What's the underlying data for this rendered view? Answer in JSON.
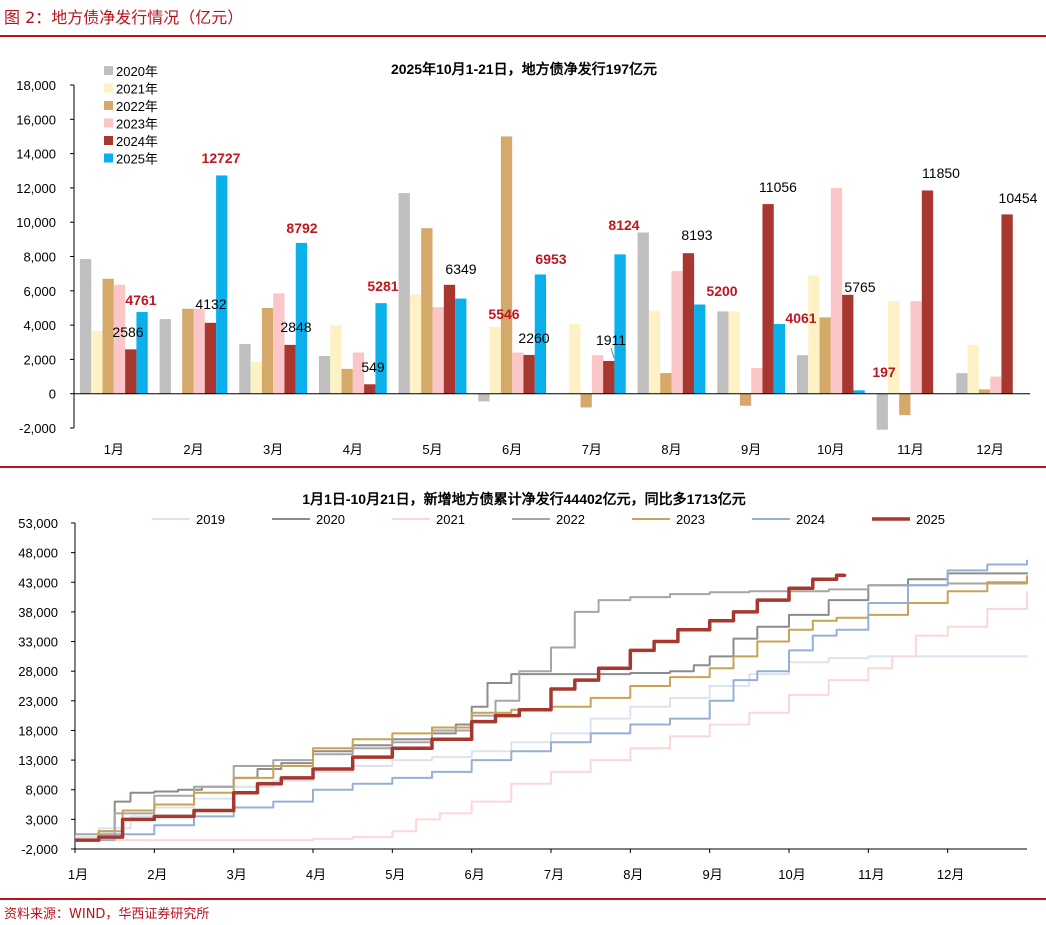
{
  "page": {
    "figure_title": "图 2：地方债净发行情况（亿元）",
    "source": "资料来源：WIND，华西证券研究所"
  },
  "chart_data": [
    {
      "type": "bar",
      "title": "2025年10月1-21日，地方债净发行197亿元",
      "categories": [
        "1月",
        "2月",
        "3月",
        "4月",
        "5月",
        "6月",
        "7月",
        "8月",
        "9月",
        "10月",
        "11月",
        "12月"
      ],
      "ylim": [
        -2000,
        18000
      ],
      "yticks": [
        -2000,
        0,
        2000,
        4000,
        6000,
        8000,
        10000,
        12000,
        14000,
        16000,
        18000
      ],
      "ytick_labels": [
        "-2,000",
        "0",
        "2,000",
        "4,000",
        "6,000",
        "8,000",
        "10,000",
        "12,000",
        "14,000",
        "16,000",
        "18,000"
      ],
      "legend_position": "top-left",
      "series": [
        {
          "name": "2020年",
          "color": "#bfbfbf",
          "values": [
            7850,
            4350,
            2900,
            2200,
            11700,
            -450,
            null,
            9400,
            4800,
            2250,
            -2100,
            1200
          ]
        },
        {
          "name": "2021年",
          "color": "#fdf2c6",
          "values": [
            3650,
            null,
            1850,
            4000,
            5800,
            3900,
            4050,
            4850,
            4800,
            6900,
            5400,
            2850
          ]
        },
        {
          "name": "2022年",
          "color": "#d4a96a",
          "values": [
            6700,
            4950,
            5000,
            1450,
            9650,
            15000,
            -800,
            1200,
            -700,
            4450,
            -1250,
            250
          ]
        },
        {
          "name": "2023年",
          "color": "#fbc6c8",
          "values": [
            6350,
            4950,
            5850,
            2400,
            5050,
            2400,
            2250,
            7150,
            1500,
            12000,
            5400,
            1000
          ]
        },
        {
          "name": "2024年",
          "color": "#a8382f",
          "values": [
            2586,
            4132,
            2848,
            549,
            6349,
            2260,
            1911,
            8193,
            11056,
            5765,
            11850,
            10454
          ]
        },
        {
          "name": "2025年",
          "color": "#0ab0ec",
          "values": [
            4761,
            12727,
            8792,
            5281,
            5546,
            6953,
            8124,
            5200,
            4061,
            197,
            null,
            null
          ]
        }
      ],
      "labels_2024": [
        "2586",
        "4132",
        "2848",
        "549",
        "6349",
        "2260",
        "1911",
        "8193",
        "11056",
        "5765",
        "11850",
        "10454"
      ],
      "labels_2025": [
        "4761",
        "12727",
        "8792",
        "5281",
        "5546",
        "6953",
        "8124",
        "5200",
        "4061",
        "197"
      ]
    },
    {
      "type": "line",
      "title": "1月1日-10月21日，新增地方债累计净发行44402亿元，同比多1713亿元",
      "xlabels": [
        "1月",
        "2月",
        "3月",
        "4月",
        "5月",
        "6月",
        "7月",
        "8月",
        "9月",
        "10月",
        "11月",
        "12月"
      ],
      "ylim": [
        -2000,
        53000
      ],
      "yticks": [
        -2000,
        3000,
        8000,
        13000,
        18000,
        23000,
        28000,
        33000,
        38000,
        43000,
        48000,
        53000
      ],
      "ytick_labels": [
        "-2,000",
        "3,000",
        "8,000",
        "13,000",
        "18,000",
        "23,000",
        "28,000",
        "33,000",
        "38,000",
        "43,000",
        "48,000",
        "53,000"
      ],
      "legend_position": "top",
      "x_unit": "month index (0 = Jan 1, 12 = Dec 31)",
      "series": [
        {
          "name": "2019",
          "color": "#dbe3f0",
          "width": 2,
          "points": [
            [
              0,
              0
            ],
            [
              0.3,
              1500
            ],
            [
              0.7,
              3500
            ],
            [
              1,
              5000
            ],
            [
              1.5,
              6500
            ],
            [
              2,
              8500
            ],
            [
              2.5,
              9500
            ],
            [
              3,
              11000
            ],
            [
              3.5,
              12000
            ],
            [
              4,
              13000
            ],
            [
              4.5,
              13500
            ],
            [
              5,
              14500
            ],
            [
              5.5,
              16000
            ],
            [
              6,
              17500
            ],
            [
              6.5,
              20000
            ],
            [
              7,
              22000
            ],
            [
              7.5,
              23500
            ],
            [
              8,
              25500
            ],
            [
              8.5,
              27500
            ],
            [
              9,
              29500
            ],
            [
              9.5,
              30200
            ],
            [
              10,
              30500
            ],
            [
              11,
              30500
            ],
            [
              12,
              30700
            ]
          ]
        },
        {
          "name": "2020",
          "color": "#8c8c8c",
          "width": 2,
          "points": [
            [
              0,
              -500
            ],
            [
              0.3,
              1000
            ],
            [
              0.5,
              6000
            ],
            [
              0.7,
              7500
            ],
            [
              1,
              7700
            ],
            [
              1.3,
              8000
            ],
            [
              1.6,
              8500
            ],
            [
              2,
              10000
            ],
            [
              2.3,
              11500
            ],
            [
              2.6,
              12500
            ],
            [
              3,
              14500
            ],
            [
              3.5,
              15500
            ],
            [
              4,
              16500
            ],
            [
              4.5,
              17500
            ],
            [
              4.8,
              19000
            ],
            [
              5,
              22000
            ],
            [
              5.2,
              26000
            ],
            [
              5.5,
              27500
            ],
            [
              6,
              27500
            ],
            [
              6.5,
              27500
            ],
            [
              7,
              27700
            ],
            [
              7.5,
              28000
            ],
            [
              7.8,
              29000
            ],
            [
              8,
              30500
            ],
            [
              8.3,
              33500
            ],
            [
              8.6,
              35500
            ],
            [
              9,
              37500
            ],
            [
              9.5,
              40000
            ],
            [
              10,
              42500
            ],
            [
              10.5,
              43500
            ],
            [
              11,
              44500
            ],
            [
              12,
              44700
            ]
          ]
        },
        {
          "name": "2021",
          "color": "#fbd8d6",
          "width": 2,
          "points": [
            [
              0,
              -500
            ],
            [
              2,
              -500
            ],
            [
              3,
              -300
            ],
            [
              3.5,
              0
            ],
            [
              4,
              1000
            ],
            [
              4.3,
              3000
            ],
            [
              4.6,
              4000
            ],
            [
              5,
              6000
            ],
            [
              5.5,
              9000
            ],
            [
              6,
              11000
            ],
            [
              6.5,
              13000
            ],
            [
              7,
              15000
            ],
            [
              7.5,
              17000
            ],
            [
              8,
              19000
            ],
            [
              8.5,
              21000
            ],
            [
              9,
              24000
            ],
            [
              9.5,
              26500
            ],
            [
              10,
              28500
            ],
            [
              10.3,
              30500
            ],
            [
              10.6,
              34000
            ],
            [
              11,
              35500
            ],
            [
              11.5,
              38500
            ],
            [
              12,
              41500
            ]
          ]
        },
        {
          "name": "2022",
          "color": "#a6a6a6",
          "width": 2,
          "points": [
            [
              0,
              500
            ],
            [
              0.5,
              4000
            ],
            [
              1,
              7000
            ],
            [
              1.5,
              8500
            ],
            [
              2,
              12000
            ],
            [
              2.5,
              13000
            ],
            [
              3,
              14000
            ],
            [
              3.5,
              15000
            ],
            [
              4,
              16000
            ],
            [
              4.5,
              18000
            ],
            [
              5,
              20500
            ],
            [
              5.3,
              23000
            ],
            [
              5.6,
              28000
            ],
            [
              6,
              32000
            ],
            [
              6.3,
              38000
            ],
            [
              6.6,
              40000
            ],
            [
              7,
              40500
            ],
            [
              7.5,
              41000
            ],
            [
              8,
              41300
            ],
            [
              8.5,
              41500
            ],
            [
              9,
              41500
            ],
            [
              9.5,
              41800
            ],
            [
              10,
              42500
            ],
            [
              11,
              42800
            ],
            [
              12,
              43000
            ]
          ]
        },
        {
          "name": "2023",
          "color": "#c9a253",
          "width": 2,
          "points": [
            [
              0,
              -500
            ],
            [
              0.3,
              1000
            ],
            [
              0.6,
              4500
            ],
            [
              1,
              5500
            ],
            [
              1.5,
              7500
            ],
            [
              2,
              10000
            ],
            [
              2.5,
              12000
            ],
            [
              3,
              15000
            ],
            [
              3.5,
              16500
            ],
            [
              4,
              17500
            ],
            [
              4.5,
              18500
            ],
            [
              5,
              21000
            ],
            [
              5.5,
              21500
            ],
            [
              6,
              22000
            ],
            [
              6.5,
              23500
            ],
            [
              7,
              25500
            ],
            [
              7.5,
              27000
            ],
            [
              8,
              28500
            ],
            [
              8.3,
              30500
            ],
            [
              8.6,
              33000
            ],
            [
              9,
              35000
            ],
            [
              9.3,
              36500
            ],
            [
              9.6,
              37000
            ],
            [
              10,
              37500
            ],
            [
              10.5,
              39500
            ],
            [
              11,
              41500
            ],
            [
              11.5,
              43000
            ],
            [
              12,
              44200
            ]
          ]
        },
        {
          "name": "2024",
          "color": "#95b0d6",
          "width": 2,
          "points": [
            [
              0,
              -500
            ],
            [
              0.5,
              500
            ],
            [
              1,
              2000
            ],
            [
              1.5,
              3500
            ],
            [
              2,
              5000
            ],
            [
              2.5,
              6000
            ],
            [
              3,
              8000
            ],
            [
              3.5,
              9000
            ],
            [
              4,
              10000
            ],
            [
              4.5,
              11000
            ],
            [
              5,
              13000
            ],
            [
              5.5,
              14500
            ],
            [
              6,
              16000
            ],
            [
              6.5,
              17500
            ],
            [
              7,
              19000
            ],
            [
              7.5,
              20000
            ],
            [
              8,
              23000
            ],
            [
              8.3,
              26500
            ],
            [
              8.6,
              28000
            ],
            [
              9,
              31500
            ],
            [
              9.3,
              34000
            ],
            [
              9.6,
              35000
            ],
            [
              10,
              39500
            ],
            [
              10.5,
              42500
            ],
            [
              11,
              45000
            ],
            [
              11.5,
              46000
            ],
            [
              12,
              46800
            ]
          ]
        },
        {
          "name": "2025",
          "color": "#a8382f",
          "width": 3.5,
          "points": [
            [
              0,
              -500
            ],
            [
              0.3,
              0
            ],
            [
              0.6,
              3000
            ],
            [
              1,
              3500
            ],
            [
              1.5,
              4500
            ],
            [
              2,
              7500
            ],
            [
              2.3,
              9000
            ],
            [
              2.6,
              10000
            ],
            [
              3,
              11500
            ],
            [
              3.5,
              13500
            ],
            [
              4,
              15000
            ],
            [
              4.5,
              16500
            ],
            [
              5,
              19500
            ],
            [
              5.3,
              20500
            ],
            [
              5.6,
              21500
            ],
            [
              6,
              25000
            ],
            [
              6.3,
              26500
            ],
            [
              6.6,
              28500
            ],
            [
              7,
              31500
            ],
            [
              7.3,
              33000
            ],
            [
              7.6,
              35000
            ],
            [
              8,
              36500
            ],
            [
              8.3,
              38000
            ],
            [
              8.6,
              40000
            ],
            [
              9,
              42000
            ],
            [
              9.3,
              43500
            ],
            [
              9.6,
              44200
            ],
            [
              9.7,
              44402
            ]
          ]
        }
      ]
    }
  ]
}
